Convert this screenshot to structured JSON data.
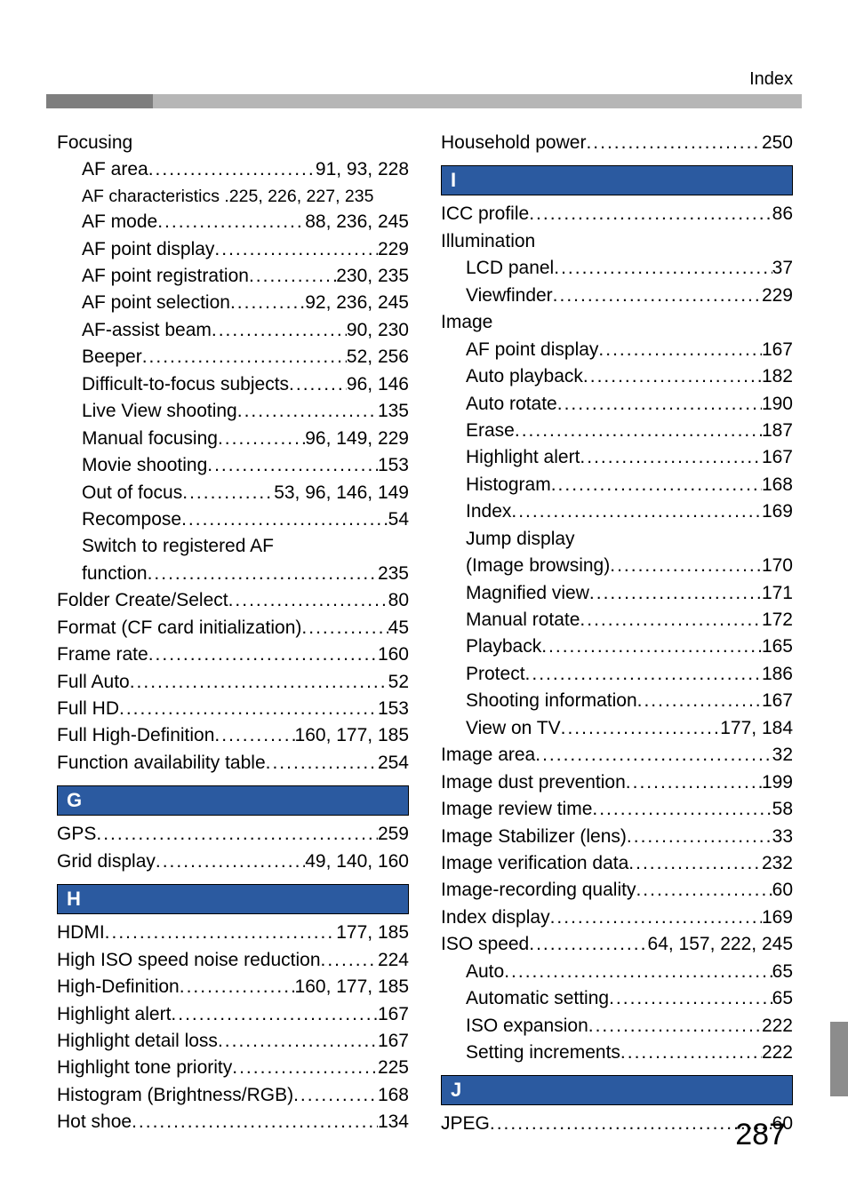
{
  "header": {
    "label": "Index"
  },
  "pageNumber": "287",
  "colors": {
    "section_bg": "#2b5aa0",
    "section_fg": "#ffffff",
    "bar_light": "#b6b6b6",
    "bar_dark": "#7e7e7e"
  },
  "left": {
    "focusing": {
      "heading": "Focusing",
      "items": [
        {
          "label": "AF area",
          "pages": "91, 93, 228"
        },
        {
          "label": "AF characteristics",
          "pages": "225, 226, 227, 235",
          "tight": true
        },
        {
          "label": "AF mode",
          "pages": "88, 236, 245"
        },
        {
          "label": "AF point display",
          "pages": "229"
        },
        {
          "label": "AF point registration",
          "pages": "230, 235"
        },
        {
          "label": "AF point selection",
          "pages": "92, 236, 245"
        },
        {
          "label": "AF-assist beam",
          "pages": "90, 230"
        },
        {
          "label": "Beeper",
          "pages": "52, 256"
        },
        {
          "label": "Difficult-to-focus subjects",
          "pages": "96, 146"
        },
        {
          "label": "Live View shooting",
          "pages": "135"
        },
        {
          "label": "Manual focusing",
          "pages": "96, 149, 229"
        },
        {
          "label": "Movie shooting",
          "pages": "153"
        },
        {
          "label": "Out of focus",
          "pages": "53, 96, 146, 149"
        },
        {
          "label": "Recompose",
          "pages": "54"
        },
        {
          "label_a": "Switch to registered AF",
          "label_b": "function",
          "pages": "235"
        }
      ]
    },
    "rest": [
      {
        "label": "Folder Create/Select",
        "pages": "80"
      },
      {
        "label": "Format (CF card initialization)",
        "pages": "45"
      },
      {
        "label": "Frame rate",
        "pages": "160"
      },
      {
        "label": "Full Auto",
        "pages": "52"
      },
      {
        "label": "Full HD",
        "pages": "153"
      },
      {
        "label": "Full High-Definition",
        "pages": "160, 177, 185"
      },
      {
        "label": "Function availability table",
        "pages": "254"
      }
    ],
    "G": {
      "title": "G",
      "items": [
        {
          "label": "GPS",
          "pages": "259"
        },
        {
          "label": "Grid display",
          "pages": "49, 140, 160"
        }
      ]
    },
    "H": {
      "title": "H",
      "items": [
        {
          "label": "HDMI",
          "pages": "177, 185"
        },
        {
          "label": "High ISO speed noise reduction",
          "pages": "224"
        },
        {
          "label": "High-Definition",
          "pages": "160, 177, 185"
        },
        {
          "label": "Highlight alert",
          "pages": "167"
        },
        {
          "label": "Highlight detail loss",
          "pages": "167"
        },
        {
          "label": "Highlight tone priority",
          "pages": "225"
        },
        {
          "label": "Histogram (Brightness/RGB)",
          "pages": "168"
        },
        {
          "label": "Hot shoe",
          "pages": "134"
        }
      ]
    }
  },
  "right": {
    "pre": [
      {
        "label": "Household power",
        "pages": "250"
      }
    ],
    "I": {
      "title": "I",
      "lead": [
        {
          "label": "ICC profile",
          "pages": "86"
        }
      ],
      "illumination": {
        "heading": "Illumination",
        "items": [
          {
            "label": "LCD panel",
            "pages": "37"
          },
          {
            "label": "Viewfinder",
            "pages": "229"
          }
        ]
      },
      "image": {
        "heading": "Image",
        "items": [
          {
            "label": "AF point display",
            "pages": "167"
          },
          {
            "label": "Auto playback",
            "pages": "182"
          },
          {
            "label": "Auto rotate",
            "pages": "190"
          },
          {
            "label": "Erase",
            "pages": "187"
          },
          {
            "label": "Highlight alert",
            "pages": "167"
          },
          {
            "label": "Histogram",
            "pages": "168"
          },
          {
            "label": "Index",
            "pages": "169"
          },
          {
            "label_a": "Jump display",
            "label_b": "(Image browsing)",
            "pages": "170"
          },
          {
            "label": "Magnified view",
            "pages": "171"
          },
          {
            "label": "Manual rotate",
            "pages": "172"
          },
          {
            "label": "Playback",
            "pages": "165"
          },
          {
            "label": "Protect",
            "pages": "186"
          },
          {
            "label": "Shooting information",
            "pages": "167"
          },
          {
            "label": "View on TV",
            "pages": "177, 184"
          }
        ]
      },
      "rest": [
        {
          "label": "Image area",
          "pages": "32"
        },
        {
          "label": "Image dust prevention",
          "pages": "199"
        },
        {
          "label": "Image review time",
          "pages": "58"
        },
        {
          "label": "Image Stabilizer (lens)",
          "pages": "33"
        },
        {
          "label": "Image verification data",
          "pages": "232"
        },
        {
          "label": "Image-recording quality",
          "pages": "60"
        },
        {
          "label": "Index display",
          "pages": "169"
        },
        {
          "label": "ISO speed",
          "pages": "64, 157, 222, 245"
        }
      ],
      "iso_sub": [
        {
          "label": "Auto",
          "pages": "65"
        },
        {
          "label": "Automatic setting",
          "pages": "65"
        },
        {
          "label": "ISO expansion",
          "pages": "222"
        },
        {
          "label": "Setting increments",
          "pages": "222"
        }
      ]
    },
    "J": {
      "title": "J",
      "items": [
        {
          "label": "JPEG",
          "pages": "60"
        }
      ]
    }
  }
}
